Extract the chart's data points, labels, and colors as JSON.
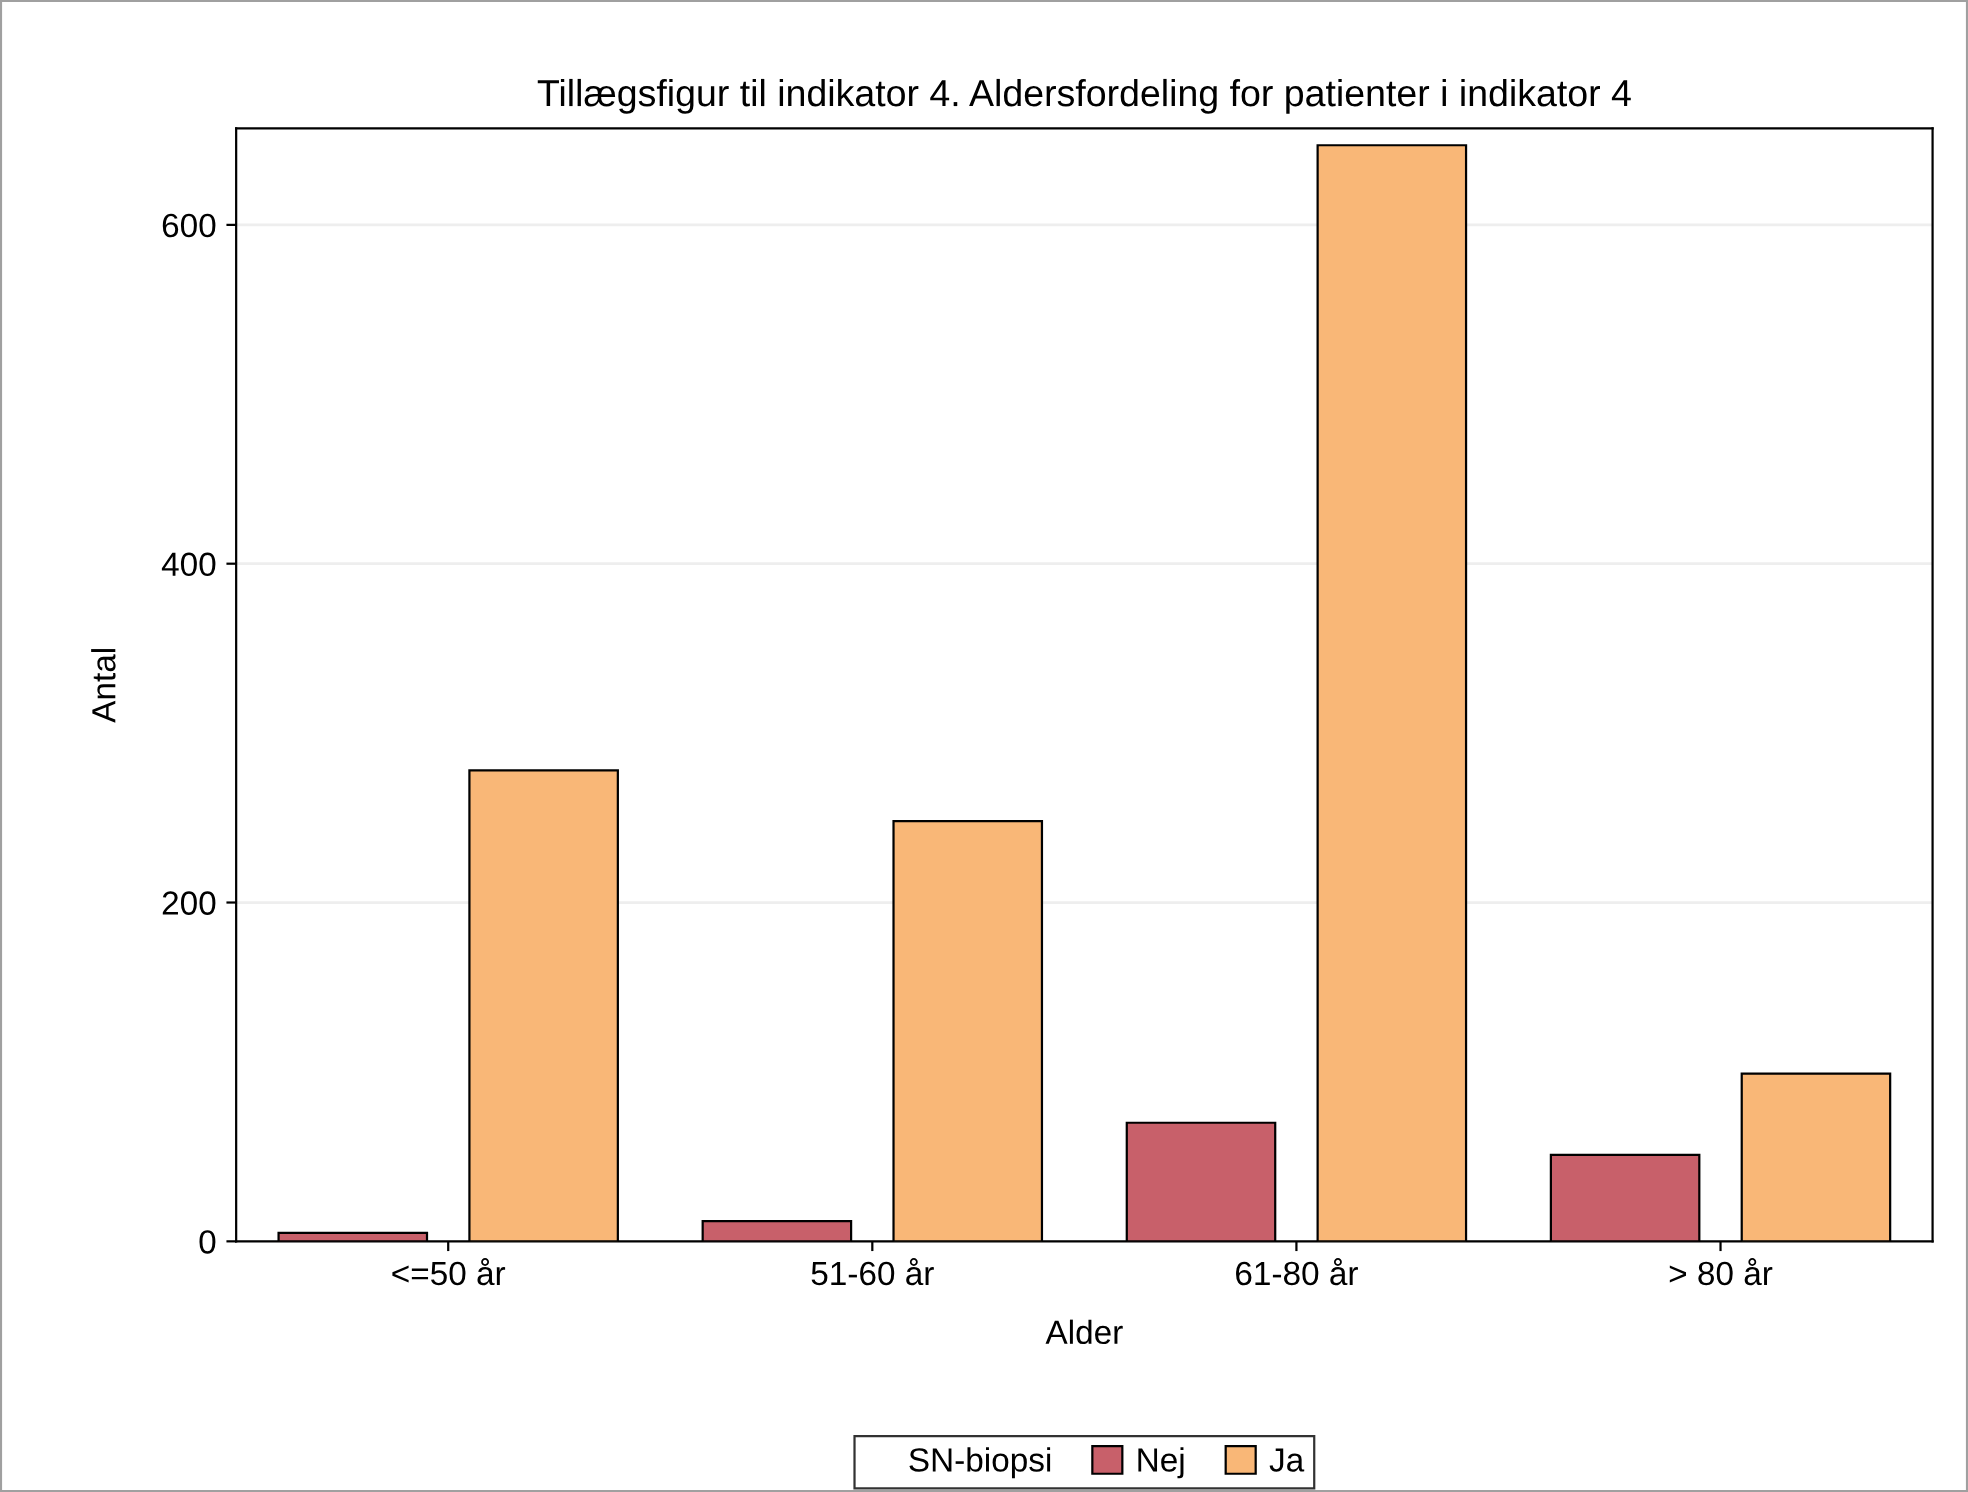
{
  "chart_data": {
    "type": "bar",
    "title": "Tillægsfigur til indikator 4. Aldersfordeling for patienter i indikator 4",
    "xlabel": "Alder",
    "ylabel": "Antal",
    "legend_title": "SN-biopsi",
    "categories": [
      "<=50 år",
      "51-60 år",
      "61-80 år",
      "> 80 år"
    ],
    "series": [
      {
        "name": "Nej",
        "color": "#c8606a",
        "values": [
          5,
          12,
          70,
          51
        ]
      },
      {
        "name": "Ja",
        "color": "#f9b777",
        "values": [
          278,
          248,
          647,
          99
        ]
      }
    ],
    "ylim": [
      0,
      657
    ],
    "yticks": [
      0,
      200,
      400,
      600
    ],
    "grid": "y",
    "legend": "bottom"
  }
}
